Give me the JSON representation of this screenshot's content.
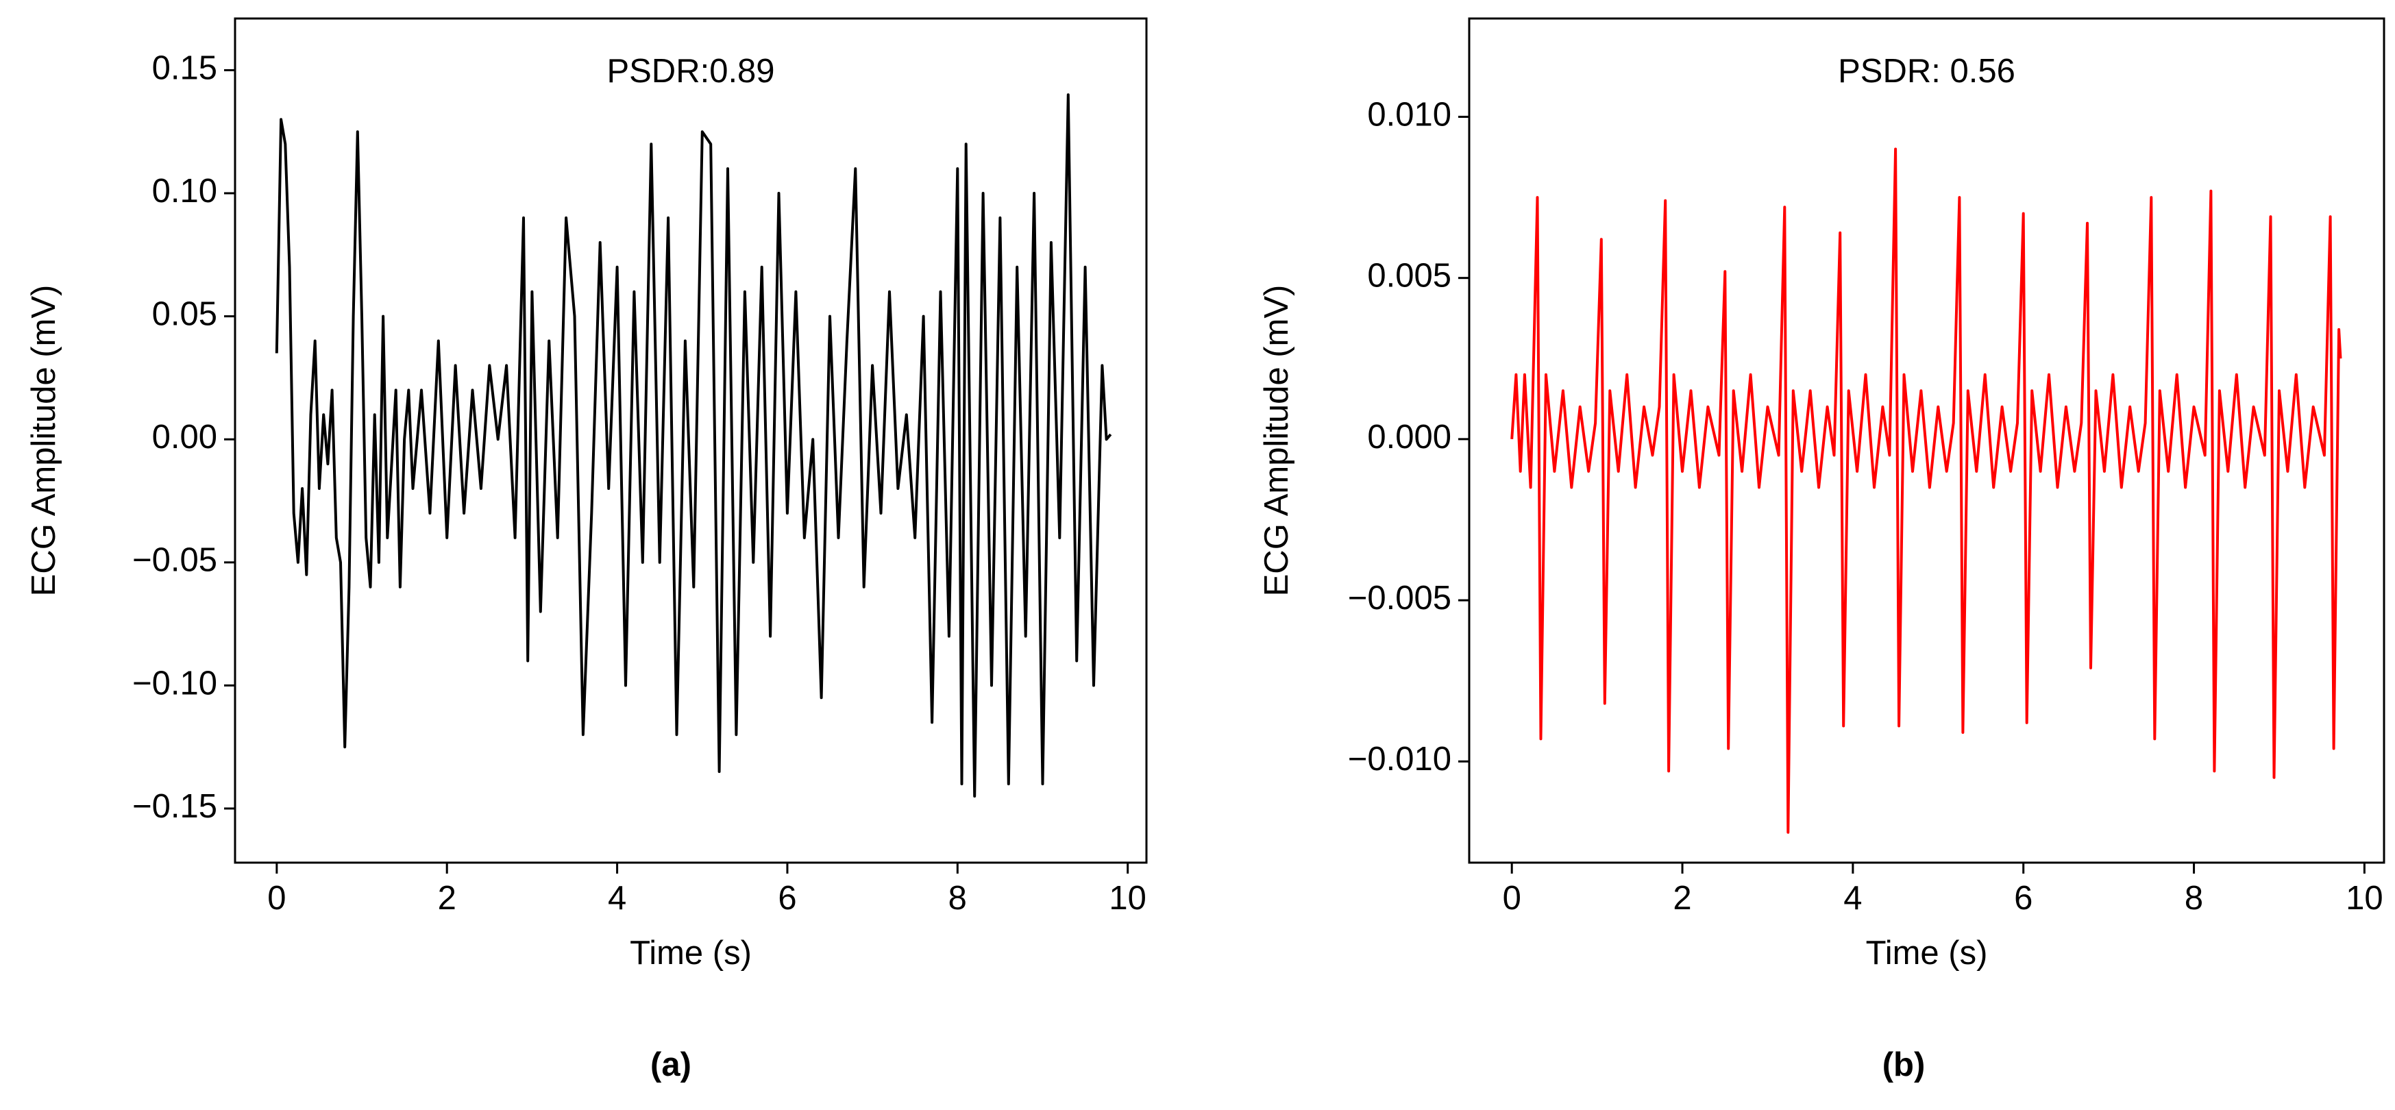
{
  "chart_data": [
    {
      "type": "line",
      "annotation": "PSDR:0.89",
      "caption": "(a)",
      "x_label": "Time (s)",
      "y_label": "ECG Amplitude (mV)",
      "color": "#000000",
      "xlim": [
        -0.49,
        10.22
      ],
      "ylim": [
        -0.172,
        0.171
      ],
      "xticks": [
        0,
        2,
        4,
        6,
        8,
        10
      ],
      "yticks": [
        {
          "value": -0.15,
          "label": "−0.15"
        },
        {
          "value": -0.1,
          "label": "−0.10"
        },
        {
          "value": -0.05,
          "label": "−0.05"
        },
        {
          "value": 0,
          "label": "0.00"
        },
        0.05,
        {
          "value": 0.1,
          "label": "0.10"
        },
        0.15
      ],
      "x": [
        0,
        0.05,
        0.1,
        0.15,
        0.2,
        0.25,
        0.3,
        0.35,
        0.4,
        0.45,
        0.5,
        0.55,
        0.6,
        0.65,
        0.7,
        0.75,
        0.8,
        0.85,
        0.9,
        0.95,
        1.0,
        1.05,
        1.1,
        1.15,
        1.2,
        1.25,
        1.3,
        1.4,
        1.45,
        1.5,
        1.55,
        1.6,
        1.7,
        1.8,
        1.9,
        2.0,
        2.1,
        2.2,
        2.3,
        2.4,
        2.5,
        2.6,
        2.7,
        2.8,
        2.9,
        2.95,
        3.0,
        3.1,
        3.2,
        3.3,
        3.4,
        3.5,
        3.6,
        3.7,
        3.8,
        3.9,
        4.0,
        4.1,
        4.2,
        4.3,
        4.4,
        4.5,
        4.6,
        4.7,
        4.8,
        4.9,
        5.0,
        5.1,
        5.2,
        5.3,
        5.4,
        5.5,
        5.6,
        5.7,
        5.8,
        5.9,
        6.0,
        6.1,
        6.2,
        6.3,
        6.4,
        6.5,
        6.6,
        6.7,
        6.8,
        6.9,
        7.0,
        7.1,
        7.2,
        7.3,
        7.4,
        7.5,
        7.6,
        7.7,
        7.8,
        7.9,
        8.0,
        8.05,
        8.1,
        8.2,
        8.3,
        8.4,
        8.5,
        8.6,
        8.7,
        8.8,
        8.9,
        9.0,
        9.1,
        9.2,
        9.3,
        9.4,
        9.5,
        9.6,
        9.7,
        9.75,
        9.8
      ],
      "values": [
        0.035,
        0.13,
        0.12,
        0.07,
        -0.03,
        -0.05,
        -0.02,
        -0.055,
        0.01,
        0.04,
        -0.02,
        0.01,
        -0.01,
        0.02,
        -0.04,
        -0.05,
        -0.125,
        -0.06,
        0.05,
        0.125,
        0.05,
        -0.04,
        -0.06,
        0.01,
        -0.05,
        0.05,
        -0.04,
        0.02,
        -0.06,
        0.0,
        0.02,
        -0.02,
        0.02,
        -0.03,
        0.04,
        -0.04,
        0.03,
        -0.03,
        0.02,
        -0.02,
        0.03,
        0.0,
        0.03,
        -0.04,
        0.09,
        -0.09,
        0.06,
        -0.07,
        0.04,
        -0.04,
        0.09,
        0.05,
        -0.12,
        -0.03,
        0.08,
        -0.02,
        0.07,
        -0.1,
        0.06,
        -0.05,
        0.12,
        -0.05,
        0.09,
        -0.12,
        0.04,
        -0.06,
        0.125,
        0.12,
        -0.135,
        0.11,
        -0.12,
        0.06,
        -0.05,
        0.07,
        -0.08,
        0.1,
        -0.03,
        0.06,
        -0.04,
        0.0,
        -0.105,
        0.05,
        -0.04,
        0.04,
        0.11,
        -0.06,
        0.03,
        -0.03,
        0.06,
        -0.02,
        0.01,
        -0.04,
        0.05,
        -0.115,
        0.06,
        -0.08,
        0.11,
        -0.14,
        0.12,
        -0.145,
        0.1,
        -0.1,
        0.09,
        -0.14,
        0.07,
        -0.08,
        0.1,
        -0.14,
        0.08,
        -0.04,
        0.14,
        -0.09,
        0.07,
        -0.1,
        0.03,
        0.0,
        0.002
      ]
    },
    {
      "type": "line",
      "annotation": "PSDR: 0.56",
      "caption": "(b)",
      "x_label": "Time (s)",
      "y_label": "ECG Amplitude (mV)",
      "color": "#ff0000",
      "xlim": [
        -0.5,
        10.23
      ],
      "ylim": [
        -0.01314,
        0.01305
      ],
      "xticks": [
        0,
        2,
        4,
        6,
        8,
        10
      ],
      "yticks": [
        {
          "value": -0.01,
          "label": "−0.010"
        },
        {
          "value": -0.005,
          "label": "−0.005"
        },
        {
          "value": 0,
          "label": "0.000"
        },
        {
          "value": 0.005,
          "label": "0.005"
        },
        {
          "value": 0.01,
          "label": "0.010"
        }
      ],
      "x": [
        0,
        0.05,
        0.1,
        0.15,
        0.22,
        0.3,
        0.34,
        0.4,
        0.5,
        0.6,
        0.7,
        0.8,
        0.9,
        0.98,
        1.05,
        1.09,
        1.15,
        1.25,
        1.35,
        1.45,
        1.55,
        1.65,
        1.73,
        1.8,
        1.84,
        1.9,
        2.0,
        2.1,
        2.2,
        2.3,
        2.43,
        2.5,
        2.54,
        2.6,
        2.7,
        2.8,
        2.9,
        3.0,
        3.13,
        3.2,
        3.24,
        3.3,
        3.4,
        3.5,
        3.6,
        3.7,
        3.78,
        3.85,
        3.89,
        3.95,
        4.05,
        4.15,
        4.25,
        4.35,
        4.43,
        4.5,
        4.54,
        4.6,
        4.7,
        4.8,
        4.9,
        5.0,
        5.1,
        5.18,
        5.25,
        5.29,
        5.35,
        5.45,
        5.55,
        5.65,
        5.75,
        5.85,
        5.93,
        6.0,
        6.04,
        6.1,
        6.2,
        6.3,
        6.4,
        6.5,
        6.6,
        6.68,
        6.75,
        6.79,
        6.85,
        6.95,
        7.05,
        7.15,
        7.25,
        7.35,
        7.43,
        7.5,
        7.54,
        7.6,
        7.7,
        7.8,
        7.9,
        8.0,
        8.13,
        8.2,
        8.24,
        8.3,
        8.4,
        8.5,
        8.6,
        8.7,
        8.83,
        8.9,
        8.94,
        9.0,
        9.1,
        9.2,
        9.3,
        9.4,
        9.53,
        9.6,
        9.64,
        9.7,
        9.72
      ],
      "values": [
        0,
        0.002,
        -0.001,
        0.002,
        -0.0015,
        0.0075,
        -0.0093,
        0.002,
        -0.001,
        0.0015,
        -0.0015,
        0.001,
        -0.001,
        0.0005,
        0.0062,
        -0.0082,
        0.0015,
        -0.001,
        0.002,
        -0.0015,
        0.001,
        -0.0005,
        0.001,
        0.0074,
        -0.0103,
        0.002,
        -0.001,
        0.0015,
        -0.0015,
        0.001,
        -0.0005,
        0.0052,
        -0.0096,
        0.0015,
        -0.001,
        0.002,
        -0.0015,
        0.001,
        -0.0005,
        0.0072,
        -0.0122,
        0.0015,
        -0.001,
        0.0015,
        -0.0015,
        0.001,
        -0.0005,
        0.0064,
        -0.0089,
        0.0015,
        -0.001,
        0.002,
        -0.0015,
        0.001,
        -0.0005,
        0.009,
        -0.0089,
        0.002,
        -0.001,
        0.0015,
        -0.0015,
        0.001,
        -0.001,
        0.0005,
        0.0075,
        -0.0091,
        0.0015,
        -0.001,
        0.002,
        -0.0015,
        0.001,
        -0.001,
        0.0005,
        0.007,
        -0.0088,
        0.0015,
        -0.001,
        0.002,
        -0.0015,
        0.001,
        -0.001,
        0.0005,
        0.0067,
        -0.0071,
        0.0015,
        -0.001,
        0.002,
        -0.0015,
        0.001,
        -0.001,
        0.0005,
        0.0075,
        -0.0093,
        0.0015,
        -0.001,
        0.002,
        -0.0015,
        0.001,
        -0.0005,
        0.0077,
        -0.0103,
        0.0015,
        -0.001,
        0.002,
        -0.0015,
        0.001,
        -0.0005,
        0.0069,
        -0.0105,
        0.0015,
        -0.001,
        0.002,
        -0.0015,
        0.001,
        -0.0005,
        0.0069,
        -0.0096,
        0.0034,
        0.0025
      ]
    }
  ]
}
